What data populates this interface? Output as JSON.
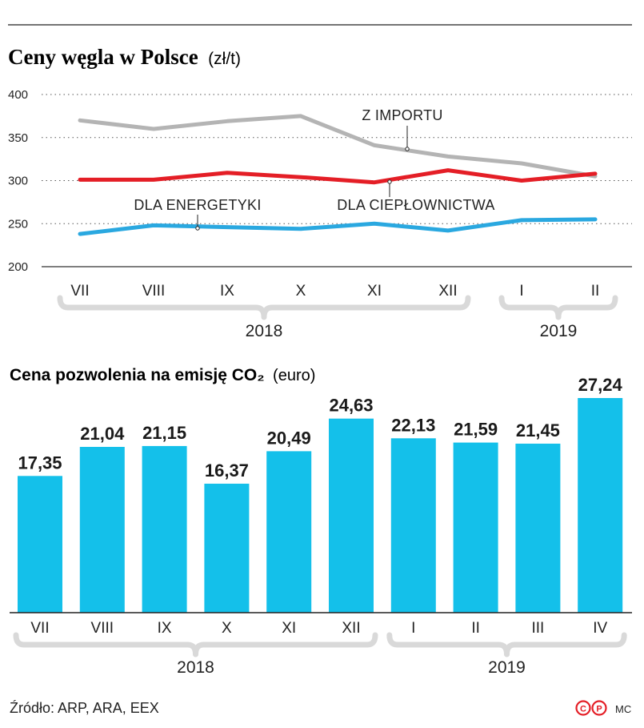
{
  "colors": {
    "import": "#b4b4b4",
    "heating": "#e41e26",
    "energy": "#2aa8e0",
    "bar": "#14c0ea",
    "bracket": "#d9d9d9",
    "grid": "#555555",
    "logo": "#e41e26"
  },
  "chart_data": [
    {
      "type": "line",
      "title": "Ceny węgla w Polsce",
      "unit": "(zł/t)",
      "categories": [
        "VII",
        "VIII",
        "IX",
        "X",
        "XI",
        "XII",
        "I",
        "II"
      ],
      "y_ticks": [
        "400",
        "350",
        "300",
        "250",
        "200"
      ],
      "ylim": [
        200,
        400
      ],
      "grid": true,
      "series": [
        {
          "key": "import",
          "name": "Z IMPORTU",
          "values": [
            370,
            360,
            369,
            375,
            341,
            328,
            320,
            305
          ]
        },
        {
          "key": "heating",
          "name": "DLA CIEPŁOWNICTWA",
          "values": [
            301,
            301,
            309,
            304,
            298,
            312,
            300,
            308
          ]
        },
        {
          "key": "energy",
          "name": "DLA ENERGETYKI",
          "values": [
            238,
            248,
            246,
            244,
            250,
            242,
            254,
            255
          ]
        }
      ],
      "year_groups": [
        {
          "label": "2018",
          "from": 0,
          "to": 5
        },
        {
          "label": "2019",
          "from": 6,
          "to": 7
        }
      ]
    },
    {
      "type": "bar",
      "title": "Cena pozwolenia na emisję CO₂",
      "unit": "(euro)",
      "categories": [
        "VII",
        "VIII",
        "IX",
        "X",
        "XI",
        "XII",
        "I",
        "II",
        "III",
        "IV"
      ],
      "values": [
        17.35,
        21.04,
        21.15,
        16.37,
        20.49,
        24.63,
        22.13,
        21.59,
        21.45,
        27.24
      ],
      "value_labels": [
        "17,35",
        "21,04",
        "21,15",
        "16,37",
        "20,49",
        "24,63",
        "22,13",
        "21,59",
        "21,45",
        "27,24"
      ],
      "ylim": [
        0,
        27.24
      ],
      "year_groups": [
        {
          "label": "2018",
          "from": 0,
          "to": 5
        },
        {
          "label": "2019",
          "from": 6,
          "to": 9
        }
      ]
    }
  ],
  "footer": {
    "source": "Źródło: ARP, ARA, EEX",
    "logo_letters": [
      "C",
      "P"
    ],
    "credit": "MC"
  }
}
